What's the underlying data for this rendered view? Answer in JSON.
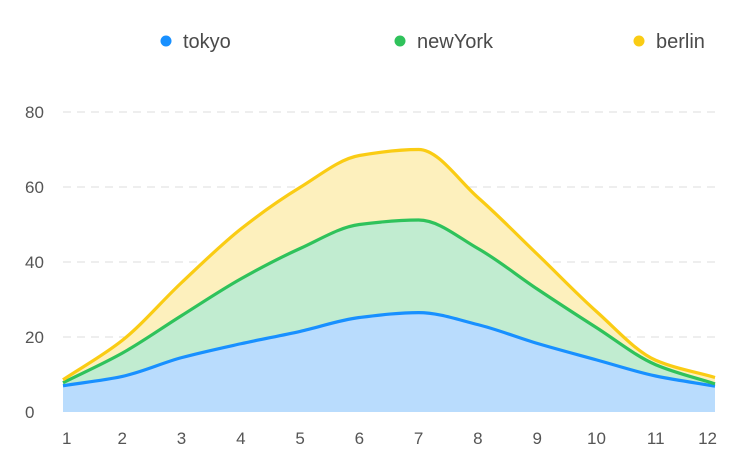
{
  "chart_data": {
    "type": "area",
    "stacked": true,
    "smooth": true,
    "x": [
      1,
      2,
      3,
      4,
      5,
      6,
      7,
      8,
      9,
      10,
      11,
      12
    ],
    "series": [
      {
        "name": "tokyo",
        "color": "#1890ff",
        "fill": "#b9dcfd",
        "values": [
          7.0,
          9.5,
          14.5,
          18.2,
          21.5,
          25.2,
          26.5,
          23.3,
          18.3,
          13.9,
          9.6,
          6.9
        ]
      },
      {
        "name": "newYork",
        "color": "#2fc25b",
        "fill": "#c1ecd0",
        "values": [
          0.8,
          6.2,
          11.2,
          17.3,
          22.1,
          24.8,
          24.7,
          20.3,
          14.5,
          8.6,
          3.0,
          0.6
        ]
      },
      {
        "name": "berlin",
        "color": "#facc14",
        "fill": "#fdf0bd",
        "values": [
          0.8,
          3.4,
          8.8,
          13.3,
          16.3,
          18.4,
          18.8,
          13.6,
          9.3,
          4.3,
          1.2,
          1.7
        ]
      }
    ],
    "yticks": [
      0,
      20,
      40,
      60,
      80
    ],
    "ylim": [
      0,
      80
    ],
    "grid": true,
    "legend": "top",
    "title": "",
    "xlabel": "",
    "ylabel": ""
  }
}
